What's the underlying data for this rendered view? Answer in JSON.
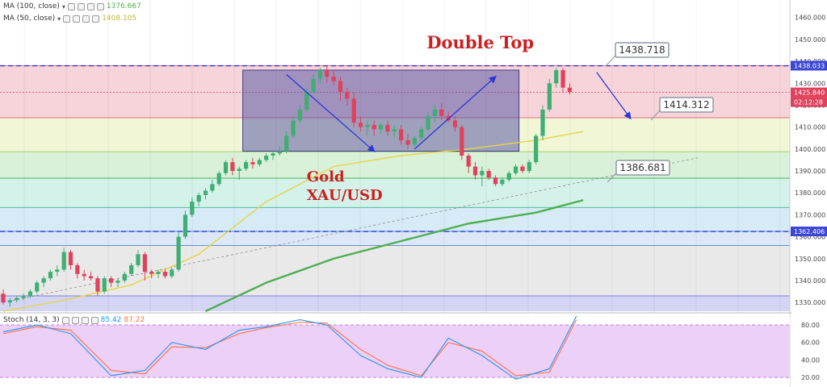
{
  "indicators": {
    "ma100": {
      "label": "MA (100, close)",
      "value": "1376.667",
      "color": "#4caf50"
    },
    "ma50": {
      "label": "MA (50, close)",
      "value": "1408.105",
      "color": "#e6d648"
    },
    "stoch": {
      "label": "Stoch (14, 3, 3)",
      "k_value": "85.42",
      "d_value": "87.22",
      "k_color": "#2196f3",
      "d_color": "#ff7043"
    }
  },
  "annotations": {
    "title": "Double Top",
    "asset_line1": "Gold",
    "asset_line2": "XAU/USD",
    "callout_top": "1438.718",
    "callout_mid": "1414.312",
    "callout_low": "1386.681"
  },
  "axis_badges": {
    "high": "1438.033",
    "current": "1425.840",
    "timer": "02:12:28",
    "low_line": "1362.406"
  },
  "colors": {
    "title_red": "#cc1f1f",
    "bull": "#3fae73",
    "bear": "#e0415c",
    "fib_line": "#2a37d6",
    "callout_border": "#8e99a4"
  },
  "chart_data": {
    "type": "candlestick",
    "price_axis": {
      "ticks": [
        1460,
        1450,
        1440,
        1430,
        1420,
        1410,
        1400,
        1390,
        1380,
        1370,
        1360,
        1350,
        1340,
        1330
      ],
      "tick_labels": [
        "1460.000",
        "1450.000",
        "1440.000",
        "1430.000",
        "1420.000",
        "1410.000",
        "1400.000",
        "1390.000",
        "1380.000",
        "1370.000",
        "1360.000",
        "1350.000",
        "1340.000",
        "1330.000"
      ],
      "range": [
        1326,
        1468
      ]
    },
    "stoch_axis": {
      "ticks": [
        80,
        60,
        40,
        20
      ],
      "tick_labels": [
        "80.00",
        "60.00",
        "40.00",
        "20.00"
      ],
      "range": [
        10,
        92
      ]
    },
    "ohlc": [
      [
        1334,
        1336,
        1329,
        1330
      ],
      [
        1330,
        1332,
        1328,
        1331
      ],
      [
        1331,
        1333,
        1330,
        1332
      ],
      [
        1332,
        1334,
        1331,
        1333
      ],
      [
        1333,
        1336,
        1332,
        1335
      ],
      [
        1335,
        1340,
        1334,
        1339
      ],
      [
        1339,
        1342,
        1337,
        1341
      ],
      [
        1341,
        1345,
        1340,
        1344
      ],
      [
        1344,
        1347,
        1342,
        1345
      ],
      [
        1345,
        1355,
        1344,
        1353
      ],
      [
        1353,
        1354,
        1345,
        1347
      ],
      [
        1347,
        1348,
        1341,
        1343
      ],
      [
        1343,
        1345,
        1340,
        1342
      ],
      [
        1342,
        1344,
        1340,
        1341
      ],
      [
        1341,
        1342,
        1333,
        1335
      ],
      [
        1335,
        1342,
        1334,
        1341
      ],
      [
        1341,
        1342,
        1337,
        1339
      ],
      [
        1339,
        1341,
        1337,
        1340
      ],
      [
        1340,
        1344,
        1339,
        1343
      ],
      [
        1343,
        1348,
        1342,
        1347
      ],
      [
        1347,
        1354,
        1346,
        1352
      ],
      [
        1352,
        1353,
        1340,
        1344
      ],
      [
        1344,
        1345,
        1341,
        1343
      ],
      [
        1343,
        1345,
        1341,
        1344
      ],
      [
        1344,
        1345,
        1341,
        1342
      ],
      [
        1342,
        1346,
        1341,
        1345
      ],
      [
        1345,
        1362,
        1344,
        1360
      ],
      [
        1360,
        1372,
        1359,
        1370
      ],
      [
        1370,
        1378,
        1369,
        1376
      ],
      [
        1376,
        1380,
        1374,
        1379
      ],
      [
        1379,
        1382,
        1377,
        1381
      ],
      [
        1381,
        1386,
        1380,
        1384
      ],
      [
        1384,
        1390,
        1383,
        1389
      ],
      [
        1389,
        1395,
        1388,
        1394
      ],
      [
        1394,
        1396,
        1388,
        1390
      ],
      [
        1390,
        1392,
        1386,
        1391
      ],
      [
        1391,
        1395,
        1390,
        1394
      ],
      [
        1394,
        1396,
        1391,
        1393
      ],
      [
        1393,
        1396,
        1392,
        1395
      ],
      [
        1395,
        1398,
        1394,
        1397
      ],
      [
        1397,
        1399,
        1395,
        1398
      ],
      [
        1398,
        1401,
        1397,
        1399
      ],
      [
        1399,
        1408,
        1398,
        1406
      ],
      [
        1406,
        1415,
        1405,
        1413
      ],
      [
        1413,
        1420,
        1412,
        1418
      ],
      [
        1418,
        1428,
        1417,
        1426
      ],
      [
        1426,
        1434,
        1425,
        1432
      ],
      [
        1432,
        1437,
        1430,
        1436
      ],
      [
        1436,
        1438,
        1430,
        1433
      ],
      [
        1433,
        1436,
        1429,
        1431
      ],
      [
        1431,
        1433,
        1422,
        1426
      ],
      [
        1426,
        1428,
        1420,
        1423
      ],
      [
        1423,
        1426,
        1410,
        1412
      ],
      [
        1412,
        1415,
        1408,
        1410
      ],
      [
        1410,
        1413,
        1406,
        1411
      ],
      [
        1411,
        1413,
        1406,
        1409
      ],
      [
        1409,
        1412,
        1407,
        1411
      ],
      [
        1411,
        1413,
        1406,
        1408
      ],
      [
        1408,
        1411,
        1405,
        1409
      ],
      [
        1409,
        1411,
        1402,
        1404
      ],
      [
        1404,
        1407,
        1400,
        1402
      ],
      [
        1402,
        1406,
        1401,
        1405
      ],
      [
        1405,
        1410,
        1404,
        1409
      ],
      [
        1409,
        1417,
        1408,
        1415
      ],
      [
        1415,
        1420,
        1412,
        1418
      ],
      [
        1418,
        1421,
        1413,
        1415
      ],
      [
        1415,
        1417,
        1412,
        1413
      ],
      [
        1413,
        1415,
        1408,
        1410
      ],
      [
        1410,
        1411,
        1395,
        1397
      ],
      [
        1397,
        1398,
        1389,
        1392
      ],
      [
        1392,
        1394,
        1386,
        1388
      ],
      [
        1388,
        1392,
        1383,
        1390
      ],
      [
        1390,
        1391,
        1386,
        1387
      ],
      [
        1387,
        1388,
        1383,
        1384
      ],
      [
        1384,
        1387,
        1383,
        1386
      ],
      [
        1386,
        1390,
        1385,
        1389
      ],
      [
        1389,
        1393,
        1388,
        1392
      ],
      [
        1392,
        1393,
        1389,
        1390
      ],
      [
        1390,
        1395,
        1389,
        1394
      ],
      [
        1394,
        1407,
        1393,
        1406
      ],
      [
        1406,
        1420,
        1404,
        1418
      ],
      [
        1418,
        1432,
        1417,
        1430
      ],
      [
        1430,
        1437,
        1428,
        1436
      ],
      [
        1436,
        1437,
        1426,
        1428
      ],
      [
        1428,
        1430,
        1425,
        1426
      ]
    ],
    "ma50": {
      "name": "MA (50, close)",
      "x": [
        0,
        9,
        19,
        29,
        39,
        49,
        59,
        69,
        79,
        86
      ],
      "y": [
        1326,
        1331,
        1338,
        1352,
        1376,
        1392,
        1397,
        1400,
        1404,
        1408
      ]
    },
    "ma100": {
      "name": "MA (100, close)",
      "x": [
        30,
        39,
        49,
        59,
        69,
        79,
        86
      ],
      "y": [
        1326,
        1339,
        1350,
        1358,
        1366,
        1371,
        1376.667
      ]
    },
    "stoch_k": {
      "name": "%K",
      "x": [
        0,
        5,
        10,
        16,
        21,
        25,
        30,
        35,
        39,
        44,
        48,
        53,
        57,
        62,
        66,
        71,
        76,
        81,
        85
      ],
      "y": [
        72,
        80,
        70,
        22,
        28,
        60,
        52,
        74,
        78,
        86,
        80,
        45,
        30,
        20,
        65,
        45,
        18,
        30,
        90
      ]
    },
    "stoch_d": {
      "name": "%D",
      "x": [
        0,
        5,
        10,
        16,
        21,
        25,
        30,
        35,
        39,
        44,
        48,
        53,
        57,
        62,
        66,
        71,
        76,
        81,
        85
      ],
      "y": [
        70,
        78,
        74,
        28,
        24,
        55,
        54,
        70,
        77,
        83,
        82,
        52,
        34,
        22,
        60,
        50,
        22,
        26,
        86
      ]
    },
    "fib_levels": [
      1438,
      1414.3,
      1398.8,
      1386.7,
      1373.3,
      1362.4,
      1356
    ],
    "double_top_box": {
      "x": [
        36,
        76
      ],
      "y": [
        1399,
        1436
      ]
    },
    "trendline": {
      "x": [
        0,
        103
      ],
      "y": [
        1330,
        1396
      ]
    }
  }
}
